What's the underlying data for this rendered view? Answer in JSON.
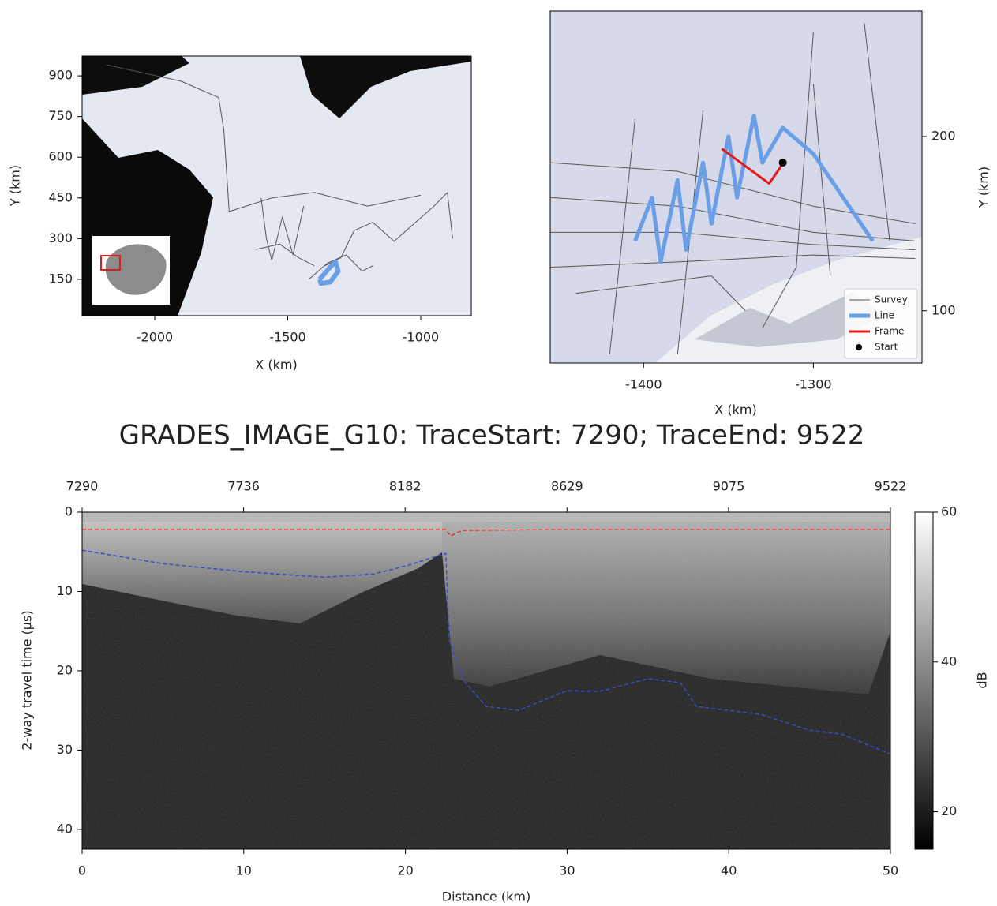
{
  "chart_data": [
    {
      "type": "map",
      "xlabel": "X (km)",
      "ylabel": "Y (km)",
      "xlim": [
        -2273,
        -810
      ],
      "ylim": [
        16,
        973
      ],
      "xticks": [
        -2000,
        -1500,
        -1000
      ],
      "yticks": [
        150,
        300,
        450,
        600,
        750,
        900
      ],
      "yaxis": "left",
      "series": [
        {
          "color": "#555555",
          "linewidth": 1,
          "x": [
            -2180,
            -1900,
            -1760,
            -1740,
            -1720,
            null,
            -1720,
            -1560,
            -1400,
            -1200,
            -1000,
            null,
            -1620,
            -1530,
            -1460,
            -1400,
            null,
            -1600,
            -1580,
            -1560,
            -1520,
            -1480,
            -1440,
            null,
            -1360,
            -1300,
            -1250,
            -1180,
            -1100,
            -950,
            -900,
            -880,
            null,
            -1420,
            -1350,
            -1280,
            -1220,
            -1180
          ],
          "y": [
            940,
            880,
            820,
            700,
            400,
            400.0,
            400,
            450,
            470,
            420,
            460,
            460,
            260,
            280,
            230,
            200,
            200,
            450,
            300,
            220,
            380,
            240,
            420,
            420,
            200,
            230,
            330,
            360,
            290,
            420,
            470,
            300,
            300,
            150,
            210,
            240,
            180,
            200
          ]
        },
        {
          "color": "#6a9ee6",
          "linewidth": 6,
          "x": [
            -1380,
            -1345,
            -1320,
            -1310,
            -1340,
            -1375,
            -1380
          ],
          "y": [
            150,
            190,
            215,
            180,
            140,
            135,
            150
          ]
        }
      ]
    },
    {
      "type": "map",
      "xlabel": "X (km)",
      "ylabel": "Y (km)",
      "xlim": [
        -1455,
        -1236
      ],
      "ylim": [
        70,
        272
      ],
      "xticks": [
        -1400,
        -1300
      ],
      "yticks": [
        100,
        200
      ],
      "yaxis": "right",
      "legend": "lower right",
      "series": [
        {
          "name": "Survey",
          "color": "#555555",
          "linewidth": 1,
          "x": [
            -1455,
            -1380,
            -1300,
            -1240,
            null,
            -1455,
            -1380,
            -1300,
            -1240,
            null,
            -1455,
            -1380,
            -1300,
            -1240,
            null,
            -1455,
            -1380,
            -1300,
            -1240,
            null,
            -1420,
            -1405,
            null,
            -1380,
            -1365,
            null,
            -1300,
            -1290,
            null,
            -1270,
            -1255,
            null,
            -1440,
            -1360,
            -1340,
            null,
            -1330,
            -1310,
            -1300
          ],
          "y": [
            185,
            180,
            160,
            150,
            150,
            165,
            160,
            145,
            140,
            140,
            145,
            145,
            138,
            135,
            135,
            125,
            128,
            132,
            130,
            130,
            75,
            210,
            210,
            75,
            215,
            215,
            230,
            120,
            120,
            265,
            140,
            140,
            110,
            120,
            100,
            100,
            90,
            125,
            260
          ]
        },
        {
          "name": "Line",
          "color": "#6a9ee6",
          "linewidth": 5,
          "x": [
            -1405,
            -1395,
            -1390,
            -1380,
            -1375,
            -1365,
            -1360,
            -1350,
            -1345,
            -1335,
            -1330,
            -1318,
            -1300,
            -1265
          ],
          "y": [
            140,
            165,
            128,
            175,
            135,
            185,
            150,
            200,
            165,
            212,
            185,
            205,
            190,
            140
          ]
        },
        {
          "name": "Frame",
          "color": "#e31a1c",
          "linewidth": 3,
          "x": [
            -1354,
            -1326,
            -1319
          ],
          "y": [
            193,
            173,
            183
          ]
        },
        {
          "name": "Start",
          "color": "#000000",
          "mode": "markers",
          "x": [
            -1318
          ],
          "y": [
            185
          ]
        }
      ]
    },
    {
      "type": "radargram",
      "title": "GRADES_IMAGE_G10: TraceStart: 7290; TraceEnd: 9522",
      "xlabel": "Distance (km)",
      "ylabel": "2-way travel time (µs)",
      "xlim": [
        0,
        50
      ],
      "ylim": [
        42.5,
        0
      ],
      "xticks": [
        0,
        10,
        20,
        30,
        40,
        50
      ],
      "yticks": [
        0,
        10,
        20,
        30,
        40
      ],
      "x2lim": [
        7290,
        9522
      ],
      "x2ticks": [
        7290,
        7736,
        8182,
        8629,
        9075,
        9522
      ],
      "yaxis": "left",
      "colorbar": {
        "label": "dB",
        "lim": [
          15,
          60
        ],
        "ticks": [
          20,
          40,
          60
        ]
      },
      "series": [
        {
          "color": "#e31a1c",
          "linewidth": 1.2,
          "linestyle": "dashed",
          "x": [
            0,
            10,
            20,
            22.5,
            22.8,
            23.5,
            30,
            40,
            50
          ],
          "y": [
            2.2,
            2.2,
            2.2,
            2.2,
            3,
            2.3,
            2.2,
            2.2,
            2.2
          ]
        },
        {
          "color": "#3b4cc0",
          "linewidth": 1.5,
          "linestyle": "dashed",
          "x": [
            0,
            5,
            10,
            15,
            18,
            20,
            22.5,
            22.7,
            23.5,
            25,
            27,
            30,
            32,
            35,
            37,
            38,
            40,
            42,
            45,
            47,
            50
          ],
          "y": [
            4.8,
            6.5,
            7.5,
            8.2,
            7.8,
            6.8,
            5.2,
            16,
            21,
            24.5,
            25,
            22.5,
            22.6,
            21,
            21.5,
            24.5,
            25,
            25.5,
            27.5,
            28,
            30.5
          ]
        }
      ]
    }
  ]
}
